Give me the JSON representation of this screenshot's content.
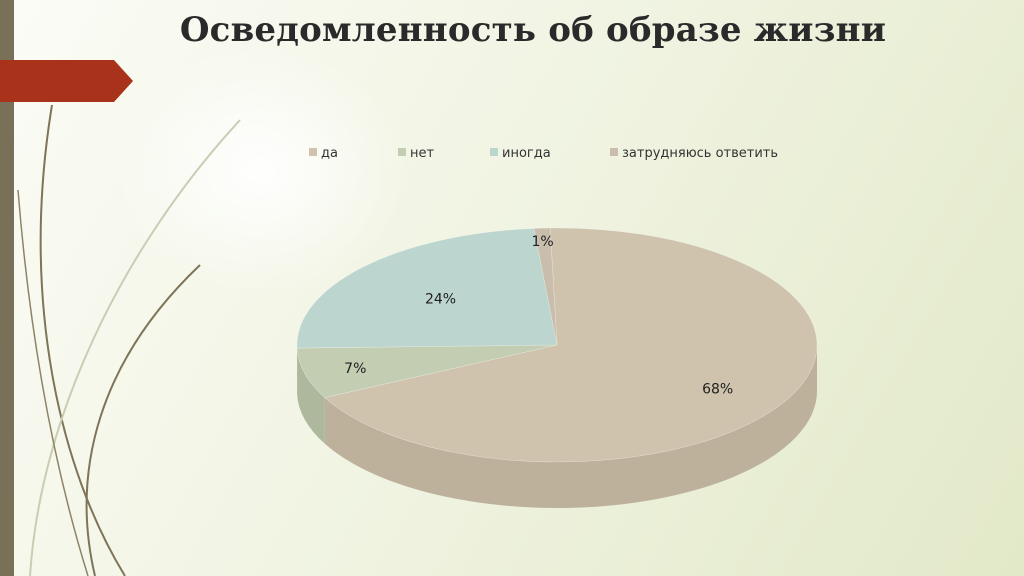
{
  "slide": {
    "title": "Осведомленность об образе жизни"
  },
  "colors": {
    "left_bar": "#7a6f57",
    "red_tab": "#a8321a",
    "decor_lines": "#7e7458"
  },
  "chart_data": {
    "type": "pie",
    "style": "3d",
    "title": "",
    "legend_position": "top",
    "categories": [
      "да",
      "нет",
      "иногда",
      "затрудняюсь ответить"
    ],
    "values": [
      68,
      7,
      24,
      1
    ],
    "data_labels": [
      "68%",
      "7%",
      "24%",
      "1%"
    ],
    "colors": [
      "#cfc3ae",
      "#c3cdb2",
      "#bcd6cf",
      "#c9beac"
    ],
    "side_colors": [
      "#bdb19b",
      "#adb89c",
      "#a8c3bc",
      "#b6aa97"
    ],
    "start_angle_deg": -91.5,
    "direction": "clockwise"
  }
}
